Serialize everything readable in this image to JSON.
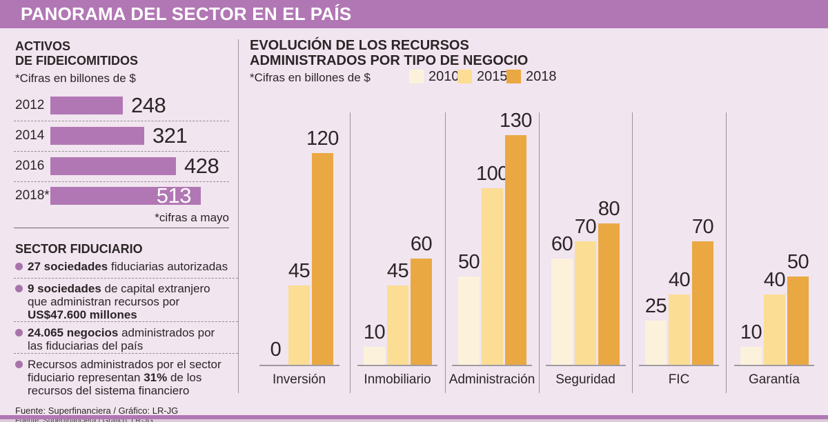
{
  "header": {
    "title": "PANORAMA DEL SECTOR EN EL PAÍS"
  },
  "colors": {
    "accent_purple": "#B177B4",
    "background": "#F1E5EF",
    "cream_2010": "#FCF2DC",
    "gold_2015": "#FBDD94",
    "amber_2018": "#EAA843",
    "text_dark": "#2B2527",
    "white": "#FFFFFF"
  },
  "left_panel": {
    "sector_title": "SECTOR FIDUCIARIO",
    "bullets": [
      {
        "lines": [
          [
            [
              "27 sociedades",
              true
            ],
            [
              " fiduciarias autorizadas",
              false
            ]
          ]
        ]
      },
      {
        "lines": [
          [
            [
              "9 sociedades",
              true
            ],
            [
              " de capital extranjero",
              false
            ]
          ],
          [
            [
              "que administran recursos por",
              false
            ]
          ],
          [
            [
              "US$47.600 millones",
              true
            ]
          ]
        ]
      },
      {
        "lines": [
          [
            [
              "24.065 negocios",
              true
            ],
            [
              " administrados por",
              false
            ]
          ],
          [
            [
              "las fiduciarias del país",
              false
            ]
          ]
        ]
      },
      {
        "lines": [
          [
            [
              "Recursos administrados por el sector",
              false
            ]
          ],
          [
            [
              "fiduciario representan ",
              false
            ],
            [
              "31%",
              true
            ],
            [
              " de los",
              false
            ]
          ],
          [
            [
              "recursos del sistema financiero",
              false
            ]
          ]
        ]
      }
    ],
    "source": "Fuente: Superfinanciera / Gráfico: LR-JG"
  },
  "chart_data": [
    {
      "id": "activos-de-fideicomitidos",
      "type": "bar",
      "orientation": "horizontal",
      "title": "ACTIVOS DE FIDEICOMITIDOS",
      "title_lines": [
        "ACTIVOS",
        "DE FIDEICOMITIDOS"
      ],
      "units_label": "*Cifras en billones de $",
      "footnote": "*cifras a mayo",
      "categories": [
        "2012",
        "2014",
        "2016",
        "2018*"
      ],
      "values": [
        248,
        321,
        428,
        513
      ],
      "bar_color": "#B177B4",
      "value_labels": true,
      "last_value_inside_bar": true
    },
    {
      "id": "evolucion-recursos",
      "type": "bar",
      "grouped": true,
      "title": "EVOLUCIÓN DE LOS RECURSOS ADMINISTRADOS POR TIPO DE NEGOCIO",
      "title_lines": [
        "EVOLUCIÓN DE LOS RECURSOS",
        "ADMINISTRADOS POR TIPO DE NEGOCIO"
      ],
      "units_label": "*Cifras en billones de $",
      "categories": [
        "Inversión",
        "Inmobiliario",
        "Administración",
        "Seguridad",
        "FIC",
        "Garantía"
      ],
      "series": [
        {
          "name": "2010",
          "color": "#FCF2DC",
          "values": [
            0,
            10,
            50,
            60,
            25,
            10
          ]
        },
        {
          "name": "2015",
          "color": "#FBDD94",
          "values": [
            45,
            45,
            100,
            70,
            40,
            40
          ]
        },
        {
          "name": "2018",
          "color": "#EAA843",
          "values": [
            120,
            60,
            130,
            80,
            70,
            50
          ]
        }
      ],
      "value_labels": true,
      "ylim": [
        0,
        130
      ],
      "grid": false,
      "legend_position": "top"
    }
  ]
}
